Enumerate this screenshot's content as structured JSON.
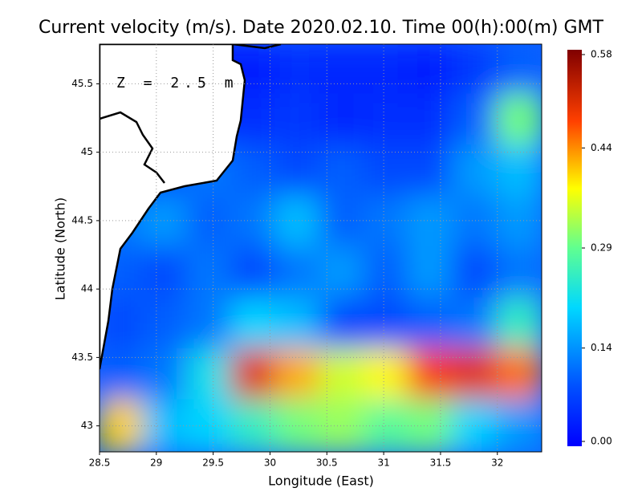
{
  "chart_data": {
    "type": "heatmap",
    "title": "Current velocity (m/s). Date 2020.02.10. Time 00(h):00(m) GMT",
    "annotation": "Z = 2.5 m",
    "x_label": "Longitude (East)",
    "y_label": "Latitude (North)",
    "xlim": [
      28.5,
      32.39
    ],
    "ylim": [
      42.81,
      45.79
    ],
    "xticks": [
      28.5,
      29,
      29.5,
      30,
      30.5,
      31,
      31.5,
      32
    ],
    "yticks": [
      43,
      43.5,
      44,
      44.5,
      45,
      45.5
    ],
    "grid": true,
    "clim": [
      0,
      0.58
    ],
    "cticks": [
      {
        "value": 0,
        "label": "0.00"
      },
      {
        "value": 0.14,
        "label": "0.14"
      },
      {
        "value": 0.29,
        "label": "0.29"
      },
      {
        "value": 0.44,
        "label": "0.44"
      },
      {
        "value": 0.58,
        "label": "0.58"
      }
    ],
    "values": [
      [
        0.02,
        0.02,
        0.02,
        0.03,
        0.05,
        0.04,
        0.04,
        0.03,
        0.06,
        0.1
      ],
      [
        0.05,
        0.05,
        0.05,
        0.05,
        0.06,
        0.04,
        0.05,
        0.05,
        0.1,
        0.3
      ],
      [
        0.05,
        0.08,
        0.12,
        0.1,
        0.08,
        0.1,
        0.08,
        0.08,
        0.15,
        0.18
      ],
      [
        0.12,
        0.15,
        0.1,
        0.12,
        0.18,
        0.1,
        0.12,
        0.15,
        0.12,
        0.15
      ],
      [
        0.1,
        0.08,
        0.12,
        0.08,
        0.12,
        0.15,
        0.1,
        0.15,
        0.08,
        0.12
      ],
      [
        0.08,
        0.1,
        0.12,
        0.2,
        0.18,
        0.08,
        0.08,
        0.1,
        0.12,
        0.25
      ],
      [
        0.1,
        0.12,
        0.22,
        0.5,
        0.42,
        0.35,
        0.38,
        0.48,
        0.5,
        0.45
      ],
      [
        0.4,
        0.18,
        0.2,
        0.25,
        0.3,
        0.32,
        0.28,
        0.3,
        0.2,
        0.15
      ]
    ]
  }
}
